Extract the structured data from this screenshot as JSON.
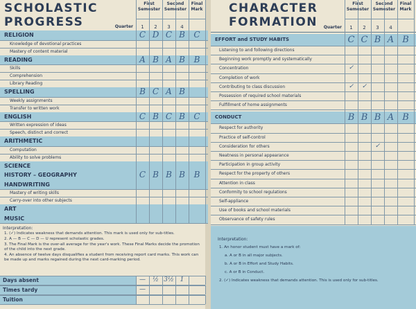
{
  "left": {
    "title": [
      "SCHOLASTIC",
      "PROGRESS"
    ],
    "semesters": [
      "First Semester",
      "Second Semester",
      "Final Mark"
    ],
    "quarter_label": "Quarter",
    "quarters": [
      "1",
      "2",
      "3",
      "4"
    ],
    "sections": [
      {
        "name": "RELIGION",
        "grades": [
          "C",
          "D",
          "C",
          "B",
          "C"
        ],
        "items": [
          {
            "label": "Knowledge of devotional practices"
          },
          {
            "label": "Mastery of content material"
          }
        ]
      },
      {
        "name": "READING",
        "grades": [
          "A",
          "B",
          "A",
          "B",
          "B"
        ],
        "items": [
          {
            "label": "Skills"
          },
          {
            "label": "Comprehension"
          },
          {
            "label": "Library Reading"
          }
        ]
      },
      {
        "name": "SPELLING",
        "grades": [
          "B",
          "C",
          "A",
          "B"
        ],
        "items": [
          {
            "label": "Weekly assignments"
          },
          {
            "label": "Transfer to written work"
          }
        ]
      },
      {
        "name": "ENGLISH",
        "grades": [
          "C",
          "B",
          "C",
          "B",
          "C"
        ],
        "items": [
          {
            "label": "Written expression of ideas"
          },
          {
            "label": "Speech, distinct and correct"
          }
        ]
      },
      {
        "name": "ARITHMETIC",
        "items": [
          {
            "label": "Computation"
          },
          {
            "label": "Ability to solve problems"
          }
        ]
      },
      {
        "name": "SCIENCE",
        "items": []
      },
      {
        "name": "HISTORY – GEOGRAPHY",
        "grades": [
          "C",
          "B",
          "B",
          "B",
          "B"
        ],
        "items": []
      },
      {
        "name": "HANDWRITING",
        "items": [
          {
            "label": "Mastery of writing skills"
          },
          {
            "label": "Carry-over into other subjects"
          }
        ]
      },
      {
        "name": "ART",
        "items": []
      },
      {
        "name": "MUSIC",
        "items": []
      }
    ],
    "interpretation": {
      "heading": "Interpretation:",
      "notes": [
        "1. (✓) Indicates weakness that demands attention. This mark is used only for sub-titles.",
        "2. A — B — C — D — U represent scholastic grades.",
        "3. The Final Mark is the over-all average for the year's work. These Final Marks decide the promotion of the child into the next grade.",
        "4. An absence of twelve days disqualifies a student from receiving report card marks. This work can be made up and marks regained during the next card-marking period."
      ]
    },
    "attendance": [
      {
        "label": "Days absent",
        "values": [
          "—",
          "½",
          "3½",
          "1"
        ]
      },
      {
        "label": "Times tardy",
        "values": [
          "—"
        ]
      },
      {
        "label": "Tuition",
        "values": []
      }
    ]
  },
  "right": {
    "title": [
      "CHARACTER",
      "FORMATION"
    ],
    "semesters": [
      "First Semester",
      "Second Semester",
      "Final Mark"
    ],
    "quarter_label": "Quarter",
    "quarters": [
      "1",
      "2",
      "3",
      "4"
    ],
    "sections": [
      {
        "name": "EFFORT and STUDY HABITS",
        "grades": [
          "C",
          "C",
          "B",
          "A",
          "B"
        ],
        "items": [
          {
            "label": "Listening to and following directions"
          },
          {
            "label": "Beginning work promptly and systematically"
          },
          {
            "label": "Concentration",
            "grades": [
              "✓"
            ]
          },
          {
            "label": "Completion of work"
          },
          {
            "label": "Contributing to class discussion",
            "grades": [
              "✓",
              "✓"
            ]
          },
          {
            "label": "Possession of required school materials"
          },
          {
            "label": "Fulfillment of home assignments"
          }
        ]
      },
      {
        "name": "CONDUCT",
        "grades": [
          "B",
          "B",
          "B",
          "A",
          "B"
        ],
        "items": [
          {
            "label": "Respect for authority"
          },
          {
            "label": "Practice of self-control"
          },
          {
            "label": "Consideration for others",
            "grades": [
              null,
              null,
              "✓"
            ]
          },
          {
            "label": "Neatness in personal appearance"
          },
          {
            "label": "Participation in group activity"
          },
          {
            "label": "Respect for the property of others"
          },
          {
            "label": "Attention in class"
          },
          {
            "label": "Conformity to school regulations"
          },
          {
            "label": "Self-appliance"
          },
          {
            "label": "Use of books and school materials"
          },
          {
            "label": "Observance of safety rules"
          }
        ]
      }
    ],
    "interpretation": {
      "heading": "Interpretation:",
      "notes": [
        "1. An honor student must have a mark of:",
        "a. A or B in all major subjects.",
        "b. A or B in Effort and Study Habits.",
        "c. A or B in Conduct.",
        "2. (✓) Indicates weakness that demands attention. This is used only for sub-titles."
      ]
    }
  }
}
